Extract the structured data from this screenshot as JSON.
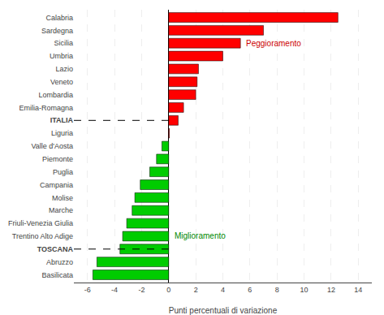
{
  "chart_data": {
    "type": "bar",
    "orientation": "horizontal",
    "categories": [
      "Calabria",
      "Sardegna",
      "Sicilia",
      "Umbria",
      "Lazio",
      "Veneto",
      "Lombardia",
      "Emilia-Romagna",
      "ITALIA",
      "Liguria",
      "Valle d'Aosta",
      "Piemonte",
      "Puglia",
      "Campania",
      "Molise",
      "Marche",
      "Friuli-Venezia Giulia",
      "Trentino Alto Adige",
      "TOSCANA",
      "Abruzzo",
      "Basilicata"
    ],
    "values": [
      12.5,
      7.0,
      5.3,
      4.0,
      2.2,
      2.1,
      2.0,
      1.1,
      0.7,
      0.05,
      -0.5,
      -0.9,
      -1.4,
      -2.1,
      -2.5,
      -2.7,
      -3.1,
      -3.4,
      -3.6,
      -5.3,
      -5.6
    ],
    "colors": [
      "#ff0000",
      "#ff0000",
      "#ff0000",
      "#ff0000",
      "#ff0000",
      "#ff0000",
      "#ff0000",
      "#ff0000",
      "#ff0000",
      "#ff0000",
      "#00cc00",
      "#00cc00",
      "#00cc00",
      "#00cc00",
      "#00cc00",
      "#00cc00",
      "#00cc00",
      "#00cc00",
      "#00cc00",
      "#00cc00",
      "#00cc00"
    ],
    "xlabel": "Punti percentuali di variazione",
    "xlim": [
      -7,
      15
    ],
    "xticks": [
      -6,
      -4,
      -2,
      0,
      2,
      4,
      6,
      8,
      10,
      12,
      14
    ],
    "grid": true,
    "annotations": [
      {
        "text": "Peggioramento",
        "category": "Sicilia",
        "color": "#cc0000"
      },
      {
        "text": "Miglioramento",
        "category": "Trentino Alto Adige",
        "color": "#008800"
      }
    ]
  }
}
